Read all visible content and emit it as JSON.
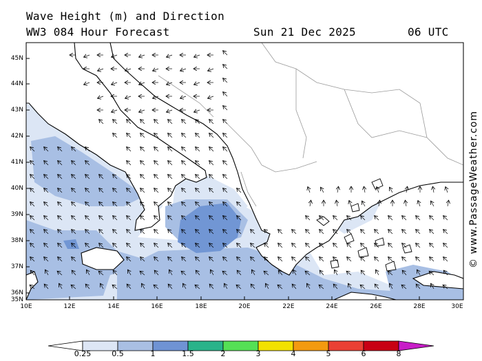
{
  "header": {
    "title": "Wave Height (m) and Direction",
    "subtitle": "WW3 084 Hour Forecast",
    "date": "Sun 21 Dec 2025",
    "time": "06 UTC"
  },
  "watermark": "© www.PassageWeather.com",
  "axes": {
    "lat_labels": [
      "45N",
      "44N",
      "43N",
      "42N",
      "41N",
      "40N",
      "39N",
      "38N",
      "37N",
      "36N",
      "35N"
    ],
    "lon_labels": [
      "10E",
      "12E",
      "14E",
      "16E",
      "18E",
      "20E",
      "22E",
      "24E",
      "26E",
      "28E",
      "30E"
    ]
  },
  "legend": {
    "labels": [
      "0.25",
      "0.5",
      "1",
      "1.5",
      "2",
      "3",
      "4",
      "5",
      "6",
      "8"
    ],
    "colors": [
      "#ffffff",
      "#dde6f5",
      "#a9bfe3",
      "#6f93d4",
      "#2ab38a",
      "#55e055",
      "#f2e100",
      "#f39a10",
      "#ea4034",
      "#c80014",
      "#c81ec8"
    ]
  },
  "colors": {
    "sea": "#e9eff9",
    "wave_low": "#ccd9ef",
    "wave_mid": "#a5bde3",
    "wave_high": "#7296d4"
  }
}
